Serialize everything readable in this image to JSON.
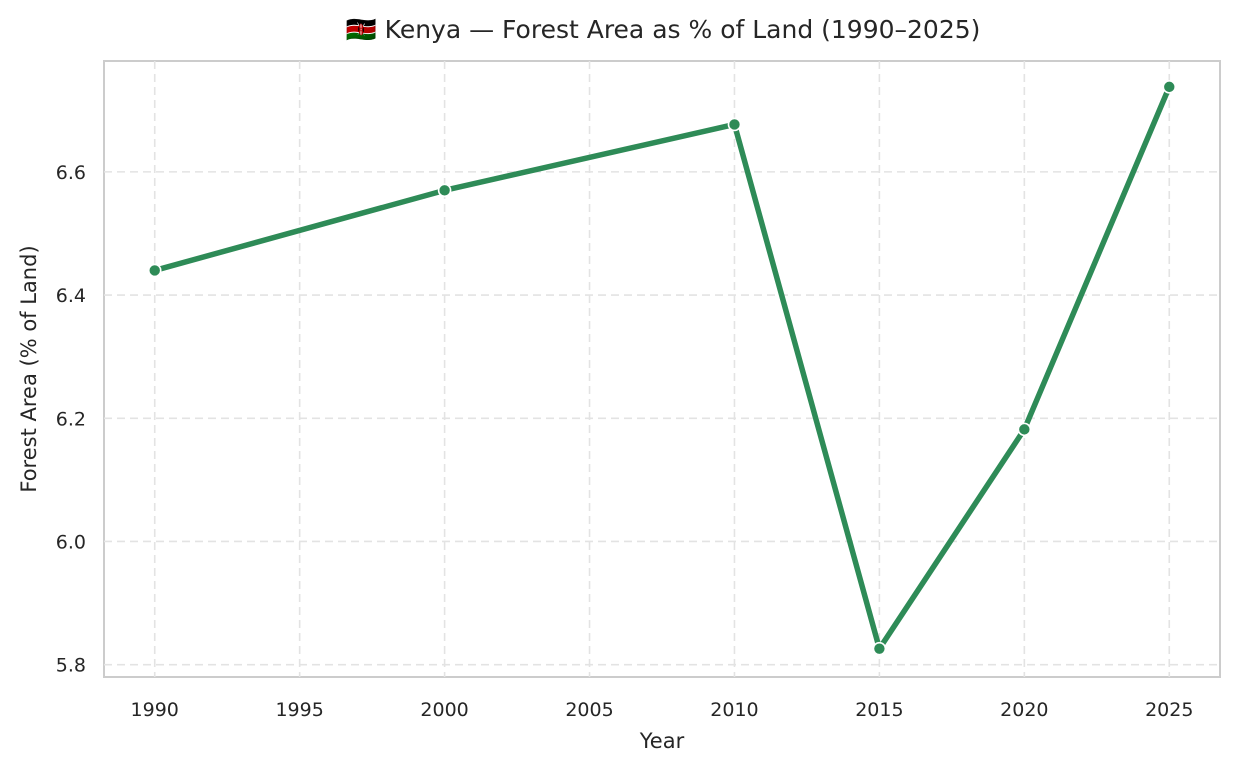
{
  "chart_data": {
    "type": "line",
    "title": "🇰🇪 Kenya — Forest Area as % of Land (1990–2025)",
    "xlabel": "Year",
    "ylabel": "Forest Area (% of Land)",
    "x": [
      1990,
      2000,
      2010,
      2015,
      2020,
      2025
    ],
    "series": [
      {
        "values": [
          6.44,
          6.57,
          6.677,
          5.826,
          6.182,
          6.738
        ]
      }
    ],
    "xticks": [
      1990,
      1995,
      2000,
      2005,
      2010,
      2015,
      2020,
      2025
    ],
    "yticks": [
      5.8,
      6.0,
      6.2,
      6.4,
      6.6
    ],
    "xlim": [
      1988.25,
      2026.75
    ],
    "ylim": [
      5.78,
      6.78
    ],
    "grid": true,
    "line_color": "#2e8b57"
  }
}
